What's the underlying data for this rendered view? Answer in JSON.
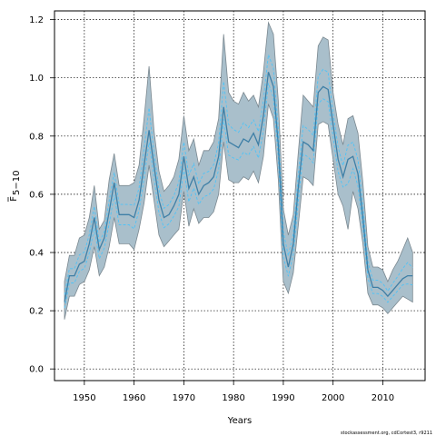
{
  "chart_data": {
    "type": "line",
    "xlabel": "Years",
    "ylabel_main": "F",
    "ylabel_sub": "5−10",
    "xlim": [
      1944,
      2018.5
    ],
    "ylim": [
      -0.04,
      1.23
    ],
    "xticks": [
      1950,
      1960,
      1970,
      1980,
      1990,
      2000,
      2010
    ],
    "yticks": [
      0.0,
      0.2,
      0.4,
      0.6,
      0.8,
      1.0,
      1.2
    ],
    "xtick_labels": [
      "1950",
      "1960",
      "1970",
      "1980",
      "1990",
      "2000",
      "2010"
    ],
    "ytick_labels": [
      "0.0",
      "0.2",
      "0.4",
      "0.6",
      "0.8",
      "1.0",
      "1.2"
    ],
    "grid": true,
    "band_color": "#a9bfcb",
    "band_edge_color": "#7b8890",
    "median_color": "#3e7fa6",
    "iter_color": "#4fc3f7",
    "series": [
      {
        "role": "estimate",
        "x": [
          1946,
          1947,
          1948,
          1949,
          1950,
          1951,
          1952,
          1953,
          1954,
          1955,
          1956,
          1957,
          1958,
          1959,
          1960,
          1961,
          1962,
          1963,
          1964,
          1965,
          1966,
          1967,
          1968,
          1969,
          1970,
          1971,
          1972,
          1973,
          1974,
          1975,
          1976,
          1977,
          1978,
          1979,
          1980,
          1981,
          1982,
          1983,
          1984,
          1985,
          1986,
          1987,
          1988,
          1989,
          1990,
          1991,
          1992,
          1993,
          1994,
          1995,
          1996,
          1997,
          1998,
          1999,
          2000,
          2001,
          2002,
          2003,
          2004,
          2005,
          2006,
          2007,
          2008,
          2009,
          2010,
          2011,
          2012,
          2013,
          2014,
          2015,
          2016
        ],
        "y": [
          0.23,
          0.32,
          0.32,
          0.36,
          0.37,
          0.43,
          0.52,
          0.41,
          0.45,
          0.54,
          0.64,
          0.53,
          0.53,
          0.53,
          0.52,
          0.58,
          0.7,
          0.82,
          0.7,
          0.58,
          0.52,
          0.53,
          0.56,
          0.6,
          0.73,
          0.62,
          0.66,
          0.6,
          0.63,
          0.64,
          0.66,
          0.73,
          0.9,
          0.78,
          0.77,
          0.76,
          0.79,
          0.78,
          0.81,
          0.77,
          0.87,
          1.02,
          0.97,
          0.77,
          0.43,
          0.35,
          0.43,
          0.62,
          0.78,
          0.77,
          0.75,
          0.95,
          0.97,
          0.96,
          0.84,
          0.72,
          0.66,
          0.72,
          0.73,
          0.67,
          0.52,
          0.34,
          0.28,
          0.28,
          0.27,
          0.25,
          0.27,
          0.29,
          0.31,
          0.32,
          0.32
        ],
        "low": [
          0.17,
          0.25,
          0.25,
          0.29,
          0.3,
          0.34,
          0.42,
          0.32,
          0.35,
          0.42,
          0.52,
          0.43,
          0.43,
          0.43,
          0.41,
          0.48,
          0.57,
          0.7,
          0.58,
          0.46,
          0.42,
          0.44,
          0.46,
          0.48,
          0.61,
          0.49,
          0.55,
          0.5,
          0.52,
          0.52,
          0.54,
          0.6,
          0.78,
          0.65,
          0.64,
          0.64,
          0.66,
          0.65,
          0.68,
          0.64,
          0.73,
          0.91,
          0.86,
          0.65,
          0.3,
          0.26,
          0.33,
          0.49,
          0.66,
          0.65,
          0.63,
          0.84,
          0.85,
          0.84,
          0.72,
          0.6,
          0.56,
          0.48,
          0.61,
          0.55,
          0.43,
          0.26,
          0.22,
          0.22,
          0.21,
          0.19,
          0.21,
          0.23,
          0.25,
          0.24,
          0.23
        ],
        "high": [
          0.3,
          0.39,
          0.39,
          0.45,
          0.46,
          0.52,
          0.63,
          0.48,
          0.51,
          0.65,
          0.74,
          0.63,
          0.63,
          0.63,
          0.64,
          0.7,
          0.86,
          1.04,
          0.82,
          0.68,
          0.61,
          0.63,
          0.66,
          0.72,
          0.87,
          0.75,
          0.79,
          0.7,
          0.75,
          0.75,
          0.78,
          0.86,
          1.15,
          0.95,
          0.92,
          0.91,
          0.95,
          0.92,
          0.94,
          0.9,
          1.02,
          1.19,
          1.15,
          0.92,
          0.55,
          0.46,
          0.53,
          0.74,
          0.94,
          0.92,
          0.9,
          1.11,
          1.14,
          1.13,
          0.95,
          0.84,
          0.77,
          0.86,
          0.87,
          0.81,
          0.64,
          0.42,
          0.35,
          0.35,
          0.34,
          0.3,
          0.34,
          0.37,
          0.41,
          0.45,
          0.4
        ]
      }
    ],
    "footer": "stockassessment.org, cdCortest3, r9211"
  }
}
